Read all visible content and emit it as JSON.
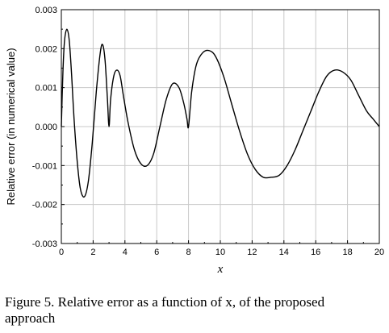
{
  "chart_data": {
    "type": "line",
    "title": "",
    "xlabel": "x",
    "ylabel": "Relative error (in numerical value)",
    "xlim": [
      0,
      20
    ],
    "ylim": [
      -0.003,
      0.003
    ],
    "xticks": [
      "0",
      "2",
      "4",
      "6",
      "8",
      "10",
      "12",
      "14",
      "16",
      "18",
      "20"
    ],
    "yticks": [
      "-0.003",
      "-0.002",
      "-0.001",
      "0.000",
      "0.001",
      "0.002",
      "0.003"
    ],
    "grid": true,
    "line_color": "#000000",
    "grid_color": "#c8c8c8",
    "series": [
      {
        "x": [
          0,
          0.1,
          0.2,
          0.35,
          0.5,
          0.65,
          0.8,
          1.0,
          1.2,
          1.45,
          1.7,
          1.95,
          2.2,
          2.45,
          2.6,
          2.75,
          2.9,
          3.0,
          3.1,
          3.3,
          3.5,
          3.7,
          3.9,
          4.2,
          4.6,
          5.0,
          5.4,
          5.8,
          6.2,
          6.6,
          7.0,
          7.4,
          7.7,
          7.9,
          8.0,
          8.2,
          8.5,
          8.9,
          9.3,
          9.7,
          10.2,
          10.7,
          11.2,
          11.7,
          12.2,
          12.7,
          13.2,
          13.7,
          14.2,
          14.7,
          15.2,
          15.7,
          16.2,
          16.7,
          17.2,
          17.7,
          18.2,
          18.7,
          19.2,
          19.6,
          20.0
        ],
        "y": [
          0.0,
          0.0014,
          0.0022,
          0.0025,
          0.0022,
          0.0013,
          0.0002,
          -0.0009,
          -0.0016,
          -0.0018,
          -0.0014,
          -0.0004,
          0.0009,
          0.0019,
          0.0021,
          0.0017,
          0.0007,
          0.0,
          0.0007,
          0.0013,
          0.00145,
          0.0013,
          0.0008,
          0.0001,
          -0.0006,
          -0.00095,
          -0.001,
          -0.0007,
          0.0,
          0.0007,
          0.0011,
          0.001,
          0.0006,
          0.0002,
          0.0,
          0.0009,
          0.0016,
          0.0019,
          0.00195,
          0.0018,
          0.0013,
          0.0006,
          -0.0001,
          -0.0007,
          -0.0011,
          -0.0013,
          -0.0013,
          -0.00125,
          -0.001,
          -0.0006,
          -0.0001,
          0.0004,
          0.0009,
          0.0013,
          0.00145,
          0.0014,
          0.0012,
          0.0008,
          0.0004,
          0.0002,
          0.0
        ]
      }
    ]
  },
  "caption": {
    "line1": "Figure 5. Relative error as a function of x, of the proposed",
    "line2": "approach"
  }
}
